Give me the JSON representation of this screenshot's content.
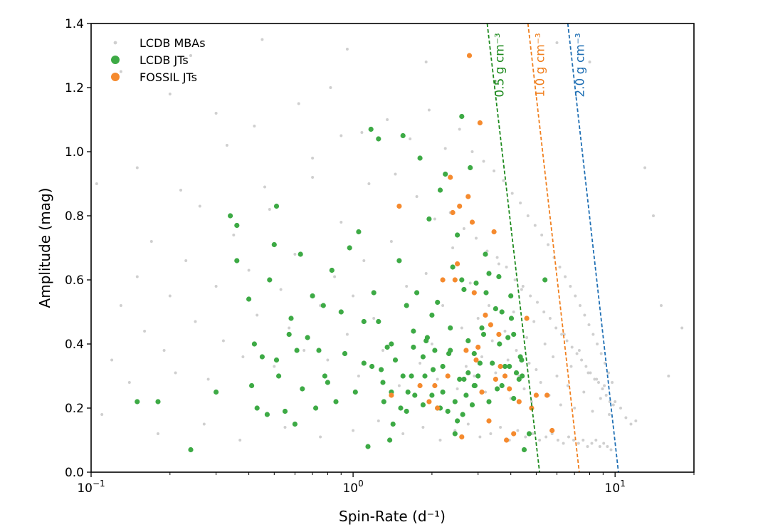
{
  "chart_data": {
    "type": "scatter",
    "xlabel": "Spin-Rate (d⁻¹)",
    "ylabel": "Amplitude (mag)",
    "xscale": "log",
    "xlim": [
      0.1,
      20
    ],
    "ylim": [
      0.0,
      1.4
    ],
    "grid": false,
    "legend_position": "top-left",
    "x_ticks": [
      {
        "value": 0.1,
        "base": "10",
        "exp": "−1"
      },
      {
        "value": 1,
        "base": "10",
        "exp": "0"
      },
      {
        "value": 10,
        "base": "10",
        "exp": "1"
      }
    ],
    "y_ticks": [
      "0.0",
      "0.2",
      "0.4",
      "0.6",
      "0.8",
      "1.0",
      "1.2",
      "1.4"
    ],
    "legend": [
      {
        "label": "LCDB MBAs",
        "color": "#cfcfcf"
      },
      {
        "label": "LCDB JTs",
        "color": "#3daa45"
      },
      {
        "label": "FOSSIL JTs",
        "color": "#f58a2e"
      }
    ],
    "density_lines": [
      {
        "label": "0.5 g cm⁻³",
        "color": "#1e8a1e",
        "x": [
          3.25,
          5.15
        ],
        "y": [
          1.4,
          0.0
        ]
      },
      {
        "label": "1.0 g cm⁻³",
        "color": "#f07f1e",
        "x": [
          4.65,
          7.3
        ],
        "y": [
          1.4,
          0.0
        ]
      },
      {
        "label": "2.0 g cm⁻³",
        "color": "#1f6fb4",
        "x": [
          6.6,
          10.3
        ],
        "y": [
          1.4,
          0.0
        ]
      }
    ],
    "series": [
      {
        "name": "LCDB MBAs",
        "color": "#cfcfcf",
        "x": [
          0.12,
          0.13,
          0.14,
          0.15,
          0.16,
          0.17,
          0.19,
          0.2,
          0.21,
          0.23,
          0.25,
          0.26,
          0.28,
          0.3,
          0.32,
          0.35,
          0.38,
          0.4,
          0.43,
          0.46,
          0.5,
          0.53,
          0.57,
          0.6,
          0.65,
          0.7,
          0.75,
          0.8,
          0.85,
          0.9,
          0.95,
          1.0,
          1.05,
          1.1,
          1.2,
          1.3,
          1.4,
          1.5,
          1.6,
          1.7,
          1.8,
          1.9,
          2.0,
          2.1,
          2.2,
          2.3,
          2.4,
          2.5,
          2.6,
          2.7,
          2.8,
          2.9,
          3.0,
          3.1,
          3.2,
          3.3,
          3.4,
          3.5,
          3.6,
          3.7,
          3.8,
          3.9,
          4.0,
          4.1,
          4.2,
          4.3,
          4.4,
          4.5,
          4.6,
          4.7,
          4.8,
          4.9,
          5.0,
          5.2,
          5.4,
          5.6,
          5.8,
          6.0,
          6.2,
          6.4,
          6.6,
          6.8,
          7.0,
          7.3,
          7.6,
          7.9,
          8.2,
          8.5,
          8.8,
          9.1,
          9.5,
          10.0,
          10.5,
          11.0,
          11.5,
          12.0,
          0.15,
          0.22,
          0.33,
          0.48,
          0.7,
          0.9,
          1.15,
          1.45,
          1.75,
          2.05,
          2.35,
          2.65,
          2.95,
          3.25,
          3.55,
          3.85,
          4.15,
          4.45,
          4.75,
          5.05,
          5.35,
          5.65,
          5.95,
          6.25,
          6.55,
          6.85,
          7.15,
          7.45,
          7.75,
          8.05,
          8.35,
          8.65,
          8.95,
          9.25,
          9.55,
          9.85,
          0.11,
          0.18,
          0.27,
          0.37,
          0.55,
          0.75,
          1.0,
          1.25,
          1.55,
          1.85,
          2.15,
          2.45,
          2.75,
          3.05,
          3.35,
          3.65,
          3.95,
          4.25,
          4.55,
          4.85,
          5.15,
          5.45,
          5.75,
          6.05,
          6.35,
          6.65,
          6.95,
          7.25,
          7.55,
          7.85,
          8.15,
          8.45,
          8.75,
          9.05,
          9.35,
          9.65,
          0.13,
          0.2,
          0.3,
          0.42,
          0.62,
          0.82,
          1.08,
          1.35,
          1.65,
          1.95,
          2.25,
          2.55,
          2.85,
          3.15,
          3.45,
          3.75,
          4.05,
          4.35,
          4.65,
          4.95,
          5.25,
          5.55,
          5.85,
          6.15,
          6.45,
          6.75,
          7.05,
          7.35,
          7.65,
          7.95,
          8.25,
          8.55,
          8.85,
          9.15,
          9.45,
          9.75,
          14.0,
          16.0,
          18.0,
          13.0,
          15.0,
          0.105,
          0.24,
          0.45,
          0.95,
          1.9,
          3.5,
          6.0,
          8.0
        ],
        "y": [
          0.35,
          0.52,
          0.28,
          0.61,
          0.44,
          0.72,
          0.38,
          0.55,
          0.31,
          0.66,
          0.47,
          0.83,
          0.29,
          0.58,
          0.41,
          0.74,
          0.36,
          0.63,
          0.49,
          0.89,
          0.33,
          0.57,
          0.45,
          0.68,
          0.38,
          0.92,
          0.52,
          0.35,
          0.61,
          0.78,
          0.43,
          0.55,
          0.3,
          0.66,
          0.48,
          0.38,
          0.72,
          0.27,
          0.58,
          0.44,
          0.34,
          0.62,
          0.4,
          0.29,
          0.52,
          0.37,
          0.7,
          0.26,
          0.45,
          0.33,
          0.59,
          0.3,
          0.48,
          0.36,
          0.25,
          0.52,
          0.41,
          0.31,
          0.65,
          0.27,
          0.44,
          0.35,
          0.23,
          0.5,
          0.38,
          0.3,
          0.57,
          0.26,
          0.42,
          0.34,
          0.22,
          0.47,
          0.32,
          0.28,
          0.4,
          0.24,
          0.36,
          0.3,
          0.21,
          0.43,
          0.27,
          0.33,
          0.2,
          0.38,
          0.25,
          0.31,
          0.19,
          0.29,
          0.23,
          0.27,
          0.18,
          0.22,
          0.2,
          0.17,
          0.15,
          0.16,
          0.95,
          0.88,
          1.02,
          0.82,
          0.98,
          1.05,
          0.9,
          0.93,
          0.86,
          0.79,
          0.81,
          0.76,
          0.73,
          0.69,
          0.67,
          0.64,
          0.6,
          0.58,
          0.55,
          0.53,
          0.5,
          0.48,
          0.45,
          0.43,
          0.41,
          0.39,
          0.37,
          0.35,
          0.33,
          0.31,
          0.29,
          0.28,
          0.26,
          0.24,
          0.22,
          0.21,
          0.18,
          0.12,
          0.15,
          0.1,
          0.14,
          0.11,
          0.13,
          0.16,
          0.12,
          0.14,
          0.1,
          0.13,
          0.15,
          0.11,
          0.12,
          0.14,
          0.1,
          0.13,
          0.11,
          0.12,
          0.1,
          0.11,
          0.12,
          0.1,
          0.09,
          0.11,
          0.1,
          0.09,
          0.1,
          0.08,
          0.09,
          0.1,
          0.08,
          0.09,
          0.08,
          0.07,
          1.25,
          1.18,
          1.12,
          1.08,
          1.15,
          1.2,
          1.06,
          1.1,
          1.04,
          1.13,
          1.01,
          1.07,
          1.0,
          0.97,
          0.94,
          0.91,
          0.87,
          0.84,
          0.8,
          0.77,
          0.74,
          0.71,
          0.67,
          0.64,
          0.61,
          0.58,
          0.55,
          0.52,
          0.49,
          0.46,
          0.43,
          0.4,
          0.37,
          0.34,
          0.31,
          0.28,
          0.8,
          0.3,
          0.45,
          0.95,
          0.52,
          0.9,
          1.3,
          1.35,
          1.32,
          1.28,
          1.22,
          1.34,
          1.28
        ]
      },
      {
        "name": "LCDB JTs",
        "color": "#3daa45",
        "x": [
          0.15,
          0.18,
          0.24,
          0.3,
          0.34,
          0.36,
          0.36,
          0.4,
          0.41,
          0.42,
          0.43,
          0.45,
          0.47,
          0.48,
          0.5,
          0.51,
          0.51,
          0.52,
          0.55,
          0.57,
          0.58,
          0.6,
          0.61,
          0.63,
          0.64,
          0.67,
          0.7,
          0.72,
          0.74,
          0.77,
          0.78,
          0.8,
          0.83,
          0.86,
          0.9,
          0.93,
          0.97,
          1.02,
          1.05,
          1.1,
          1.14,
          1.17,
          1.2,
          1.25,
          1.28,
          1.31,
          1.35,
          1.38,
          1.4,
          1.45,
          1.5,
          1.52,
          1.55,
          1.6,
          1.62,
          1.67,
          1.7,
          1.75,
          1.8,
          1.85,
          1.88,
          1.92,
          1.95,
          2.0,
          2.05,
          2.1,
          2.15,
          2.2,
          2.25,
          2.3,
          2.35,
          2.4,
          2.45,
          2.5,
          2.55,
          2.6,
          2.65,
          2.7,
          2.75,
          2.8,
          2.85,
          2.9,
          2.95,
          3.0,
          3.1,
          3.2,
          3.3,
          3.4,
          3.5,
          3.6,
          3.7,
          3.8,
          3.9,
          4.0,
          4.1,
          4.2,
          4.3,
          4.4,
          4.5,
          4.7,
          1.18,
          1.3,
          1.6,
          1.9,
          2.2,
          2.6,
          2.0,
          2.35,
          2.65,
          3.05,
          1.25,
          1.55,
          1.85,
          2.15,
          2.45,
          2.75,
          3.15,
          3.55,
          3.95,
          4.35,
          1.42,
          1.72,
          2.02,
          2.32,
          2.62,
          2.92,
          3.22,
          3.62,
          4.02,
          4.42,
          1.1,
          1.4,
          1.7,
          2.1,
          2.5,
          2.9,
          3.3,
          3.7,
          4.1,
          5.4
        ],
        "y": [
          0.22,
          0.22,
          0.07,
          0.25,
          0.8,
          0.77,
          0.66,
          0.54,
          0.27,
          0.4,
          0.2,
          0.36,
          0.18,
          0.6,
          0.71,
          0.83,
          0.35,
          0.3,
          0.19,
          0.43,
          0.48,
          0.15,
          0.38,
          0.68,
          0.26,
          0.42,
          0.55,
          0.2,
          0.38,
          0.52,
          0.3,
          0.28,
          0.63,
          0.22,
          0.5,
          0.37,
          0.7,
          0.25,
          0.75,
          0.47,
          0.08,
          1.07,
          0.56,
          1.04,
          0.32,
          0.22,
          0.39,
          0.1,
          0.25,
          0.35,
          0.66,
          0.2,
          1.05,
          0.52,
          0.25,
          0.3,
          0.39,
          0.56,
          0.98,
          0.21,
          0.3,
          0.42,
          0.79,
          0.24,
          0.38,
          0.53,
          0.88,
          0.33,
          0.93,
          0.19,
          0.45,
          0.64,
          0.12,
          0.74,
          0.29,
          1.11,
          0.57,
          0.24,
          0.41,
          0.95,
          0.21,
          0.37,
          0.59,
          0.3,
          0.45,
          0.68,
          0.22,
          0.34,
          0.51,
          0.61,
          0.27,
          0.33,
          0.42,
          0.55,
          0.23,
          0.31,
          0.29,
          0.35,
          0.07,
          0.12,
          0.33,
          0.28,
          0.19,
          0.41,
          0.25,
          0.6,
          0.49,
          0.38,
          0.29,
          0.34,
          0.47,
          0.3,
          0.36,
          0.2,
          0.22,
          0.31,
          0.43,
          0.26,
          0.33,
          0.36,
          0.15,
          0.24,
          0.32,
          0.37,
          0.18,
          0.27,
          0.56,
          0.4,
          0.48,
          0.3,
          0.34,
          0.4,
          0.44,
          0.2,
          0.16,
          0.27,
          0.62,
          0.5,
          0.43,
          0.6
        ]
      },
      {
        "name": "FOSSIL JTs",
        "color": "#f58a2e",
        "x": [
          2.78,
          3.05,
          2.75,
          2.35,
          2.55,
          1.5,
          2.4,
          2.85,
          3.45,
          2.5,
          2.45,
          2.2,
          2.9,
          3.2,
          3.35,
          3.6,
          3.8,
          2.7,
          2.3,
          2.05,
          1.95,
          3.1,
          3.5,
          3.95,
          4.6,
          5.0,
          5.5,
          5.75,
          4.1,
          3.3,
          2.6,
          2.1,
          1.8,
          1.4,
          3.85,
          4.3,
          2.95,
          3.65,
          4.8,
          3.0
        ],
        "y": [
          1.3,
          1.09,
          0.86,
          0.92,
          0.83,
          0.83,
          0.81,
          0.78,
          0.75,
          0.65,
          0.6,
          0.6,
          0.56,
          0.49,
          0.46,
          0.43,
          0.3,
          0.38,
          0.3,
          0.27,
          0.22,
          0.25,
          0.29,
          0.26,
          0.48,
          0.24,
          0.24,
          0.13,
          0.12,
          0.16,
          0.11,
          0.2,
          0.27,
          0.24,
          0.1,
          0.22,
          0.35,
          0.33,
          0.2,
          0.39
        ]
      }
    ]
  }
}
